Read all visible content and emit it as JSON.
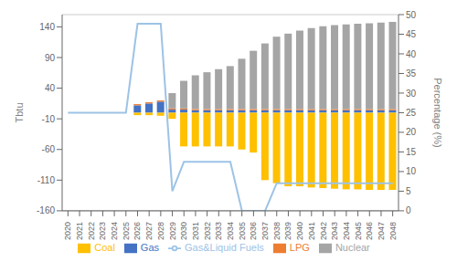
{
  "chart_data": {
    "type": "bar",
    "stacked": true,
    "categories": [
      "2020",
      "2021",
      "2022",
      "2023",
      "2024",
      "2025",
      "2026",
      "2027",
      "2028",
      "2029",
      "2030",
      "2031",
      "2032",
      "2033",
      "2034",
      "2035",
      "2036",
      "2037",
      "2038",
      "2039",
      "2040",
      "2041",
      "2042",
      "2043",
      "2044",
      "2045",
      "2046",
      "2047",
      "2048"
    ],
    "series": [
      {
        "name": "Gas",
        "color": "#4472C4",
        "values": [
          0,
          0,
          0,
          0,
          0,
          0,
          12,
          15,
          18,
          5,
          5,
          4,
          4,
          4,
          4,
          4,
          4,
          4,
          4,
          4,
          4,
          4,
          4,
          4,
          4,
          4,
          4,
          4,
          4
        ]
      },
      {
        "name": "LPG",
        "color": "#ED7D31",
        "values": [
          0,
          0,
          0,
          0,
          0,
          0,
          2,
          2,
          2,
          2,
          2,
          2,
          2,
          2,
          2,
          2,
          2,
          2,
          2,
          2,
          2,
          2,
          2,
          2,
          2,
          2,
          2,
          2,
          2
        ]
      },
      {
        "name": "Nuclear",
        "color": "#A5A5A5",
        "values": [
          0,
          0,
          0,
          0,
          0,
          0,
          0,
          0,
          0,
          25,
          45,
          55,
          60,
          65,
          70,
          82,
          95,
          107,
          118,
          123,
          128,
          132,
          135,
          137,
          138,
          139,
          140,
          141,
          142
        ]
      },
      {
        "name": "Coal",
        "color": "#FFC000",
        "values": [
          0,
          0,
          0,
          0,
          0,
          0,
          -4,
          -4,
          -5,
          -10,
          -55,
          -55,
          -55,
          -55,
          -55,
          -60,
          -65,
          -110,
          -115,
          -120,
          -120,
          -122,
          -123,
          -124,
          -125,
          -125,
          -126,
          -126,
          -126
        ]
      },
      {
        "name": "Gas&Liquid Fuels",
        "type": "line",
        "color": "#9DC3E6",
        "values": [
          0,
          0,
          0,
          0,
          0,
          0,
          145,
          145,
          145,
          -128,
          -80,
          -80,
          -80,
          -80,
          -80,
          -160,
          -160,
          -160,
          -115,
          -115,
          -115,
          -115,
          -115,
          -115,
          -115,
          -115,
          -115,
          -115,
          -115
        ]
      }
    ],
    "ylabel": "Tbtu",
    "y2label": "Percentage (%)",
    "ylim": [
      -160,
      160
    ],
    "yticks": [
      -160,
      -110,
      -60,
      -10,
      40,
      90,
      140
    ],
    "y2lim": [
      0,
      50
    ],
    "y2ticks": [
      0,
      5,
      10,
      15,
      20,
      25,
      30,
      35,
      40,
      45,
      50
    ],
    "grid": true,
    "legend": "bottom"
  }
}
